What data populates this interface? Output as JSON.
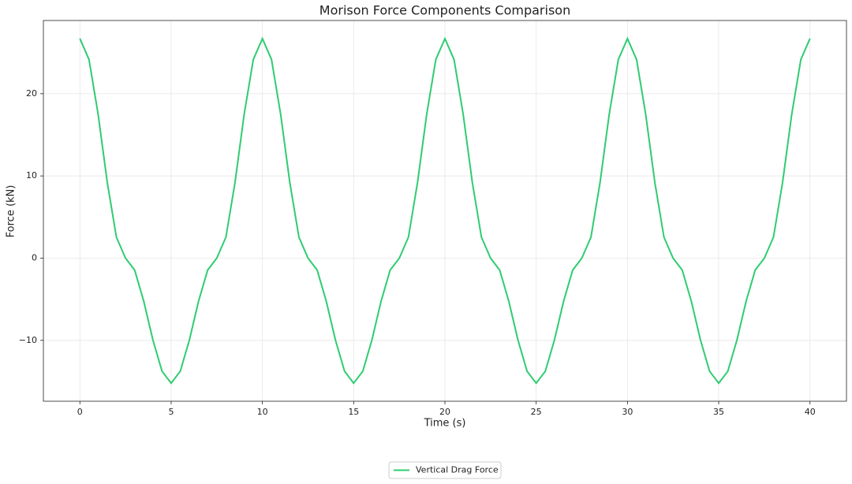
{
  "chart_data": {
    "type": "line",
    "title": "Morison Force Components Comparison",
    "x_label": "Time (s)",
    "y_label": "Force (kN)",
    "x": [
      0,
      0.5,
      1,
      1.5,
      2,
      2.5,
      3,
      3.5,
      4,
      4.5,
      5,
      5.5,
      6,
      6.5,
      7,
      7.5,
      8,
      8.5,
      9,
      9.5,
      10,
      10.5,
      11,
      11.5,
      12,
      12.5,
      13,
      13.5,
      14,
      14.5,
      15,
      15.5,
      16,
      16.5,
      17,
      17.5,
      18,
      18.5,
      19,
      19.5,
      20,
      20.5,
      21,
      21.5,
      22,
      22.5,
      23,
      23.5,
      24,
      24.5,
      25,
      25.5,
      26,
      26.5,
      27,
      27.5,
      28,
      28.5,
      29,
      29.5,
      30,
      30.5,
      31,
      31.5,
      32,
      32.5,
      33,
      33.5,
      34,
      34.5,
      35,
      35.5,
      36,
      36.5,
      37,
      37.5,
      38,
      38.5,
      39,
      39.5,
      40
    ],
    "series": [
      {
        "name": "Vertical Drag Force",
        "color": "#2ecc71",
        "values": [
          26.7,
          24.15,
          17.48,
          9.22,
          2.55,
          0,
          -1.45,
          -5.25,
          -9.95,
          -13.75,
          -15.2,
          -13.75,
          -9.95,
          -5.25,
          -1.45,
          0,
          2.55,
          9.22,
          17.48,
          24.15,
          26.7,
          24.15,
          17.48,
          9.22,
          2.55,
          0,
          -1.45,
          -5.25,
          -9.95,
          -13.75,
          -15.2,
          -13.75,
          -9.95,
          -5.25,
          -1.45,
          0,
          2.55,
          9.22,
          17.48,
          24.15,
          26.7,
          24.15,
          17.48,
          9.22,
          2.55,
          0,
          -1.45,
          -5.25,
          -9.95,
          -13.75,
          -15.2,
          -13.75,
          -9.95,
          -5.25,
          -1.45,
          0,
          2.55,
          9.22,
          17.48,
          24.15,
          26.7,
          24.15,
          17.48,
          9.22,
          2.55,
          0,
          -1.45,
          -5.25,
          -9.95,
          -13.75,
          -15.2,
          -13.75,
          -9.95,
          -5.25,
          -1.45,
          0,
          2.55,
          9.22,
          17.48,
          24.15,
          26.7
        ]
      }
    ],
    "xlim": [
      -2,
      42
    ],
    "xticks": [
      0,
      5,
      10,
      15,
      20,
      25,
      30,
      35,
      40
    ],
    "ylim": [
      -17.4,
      28.9
    ],
    "yticks": [
      {
        "value": -10,
        "label": "−10"
      },
      0,
      10,
      20
    ],
    "grid": true,
    "legend": "lower center"
  }
}
